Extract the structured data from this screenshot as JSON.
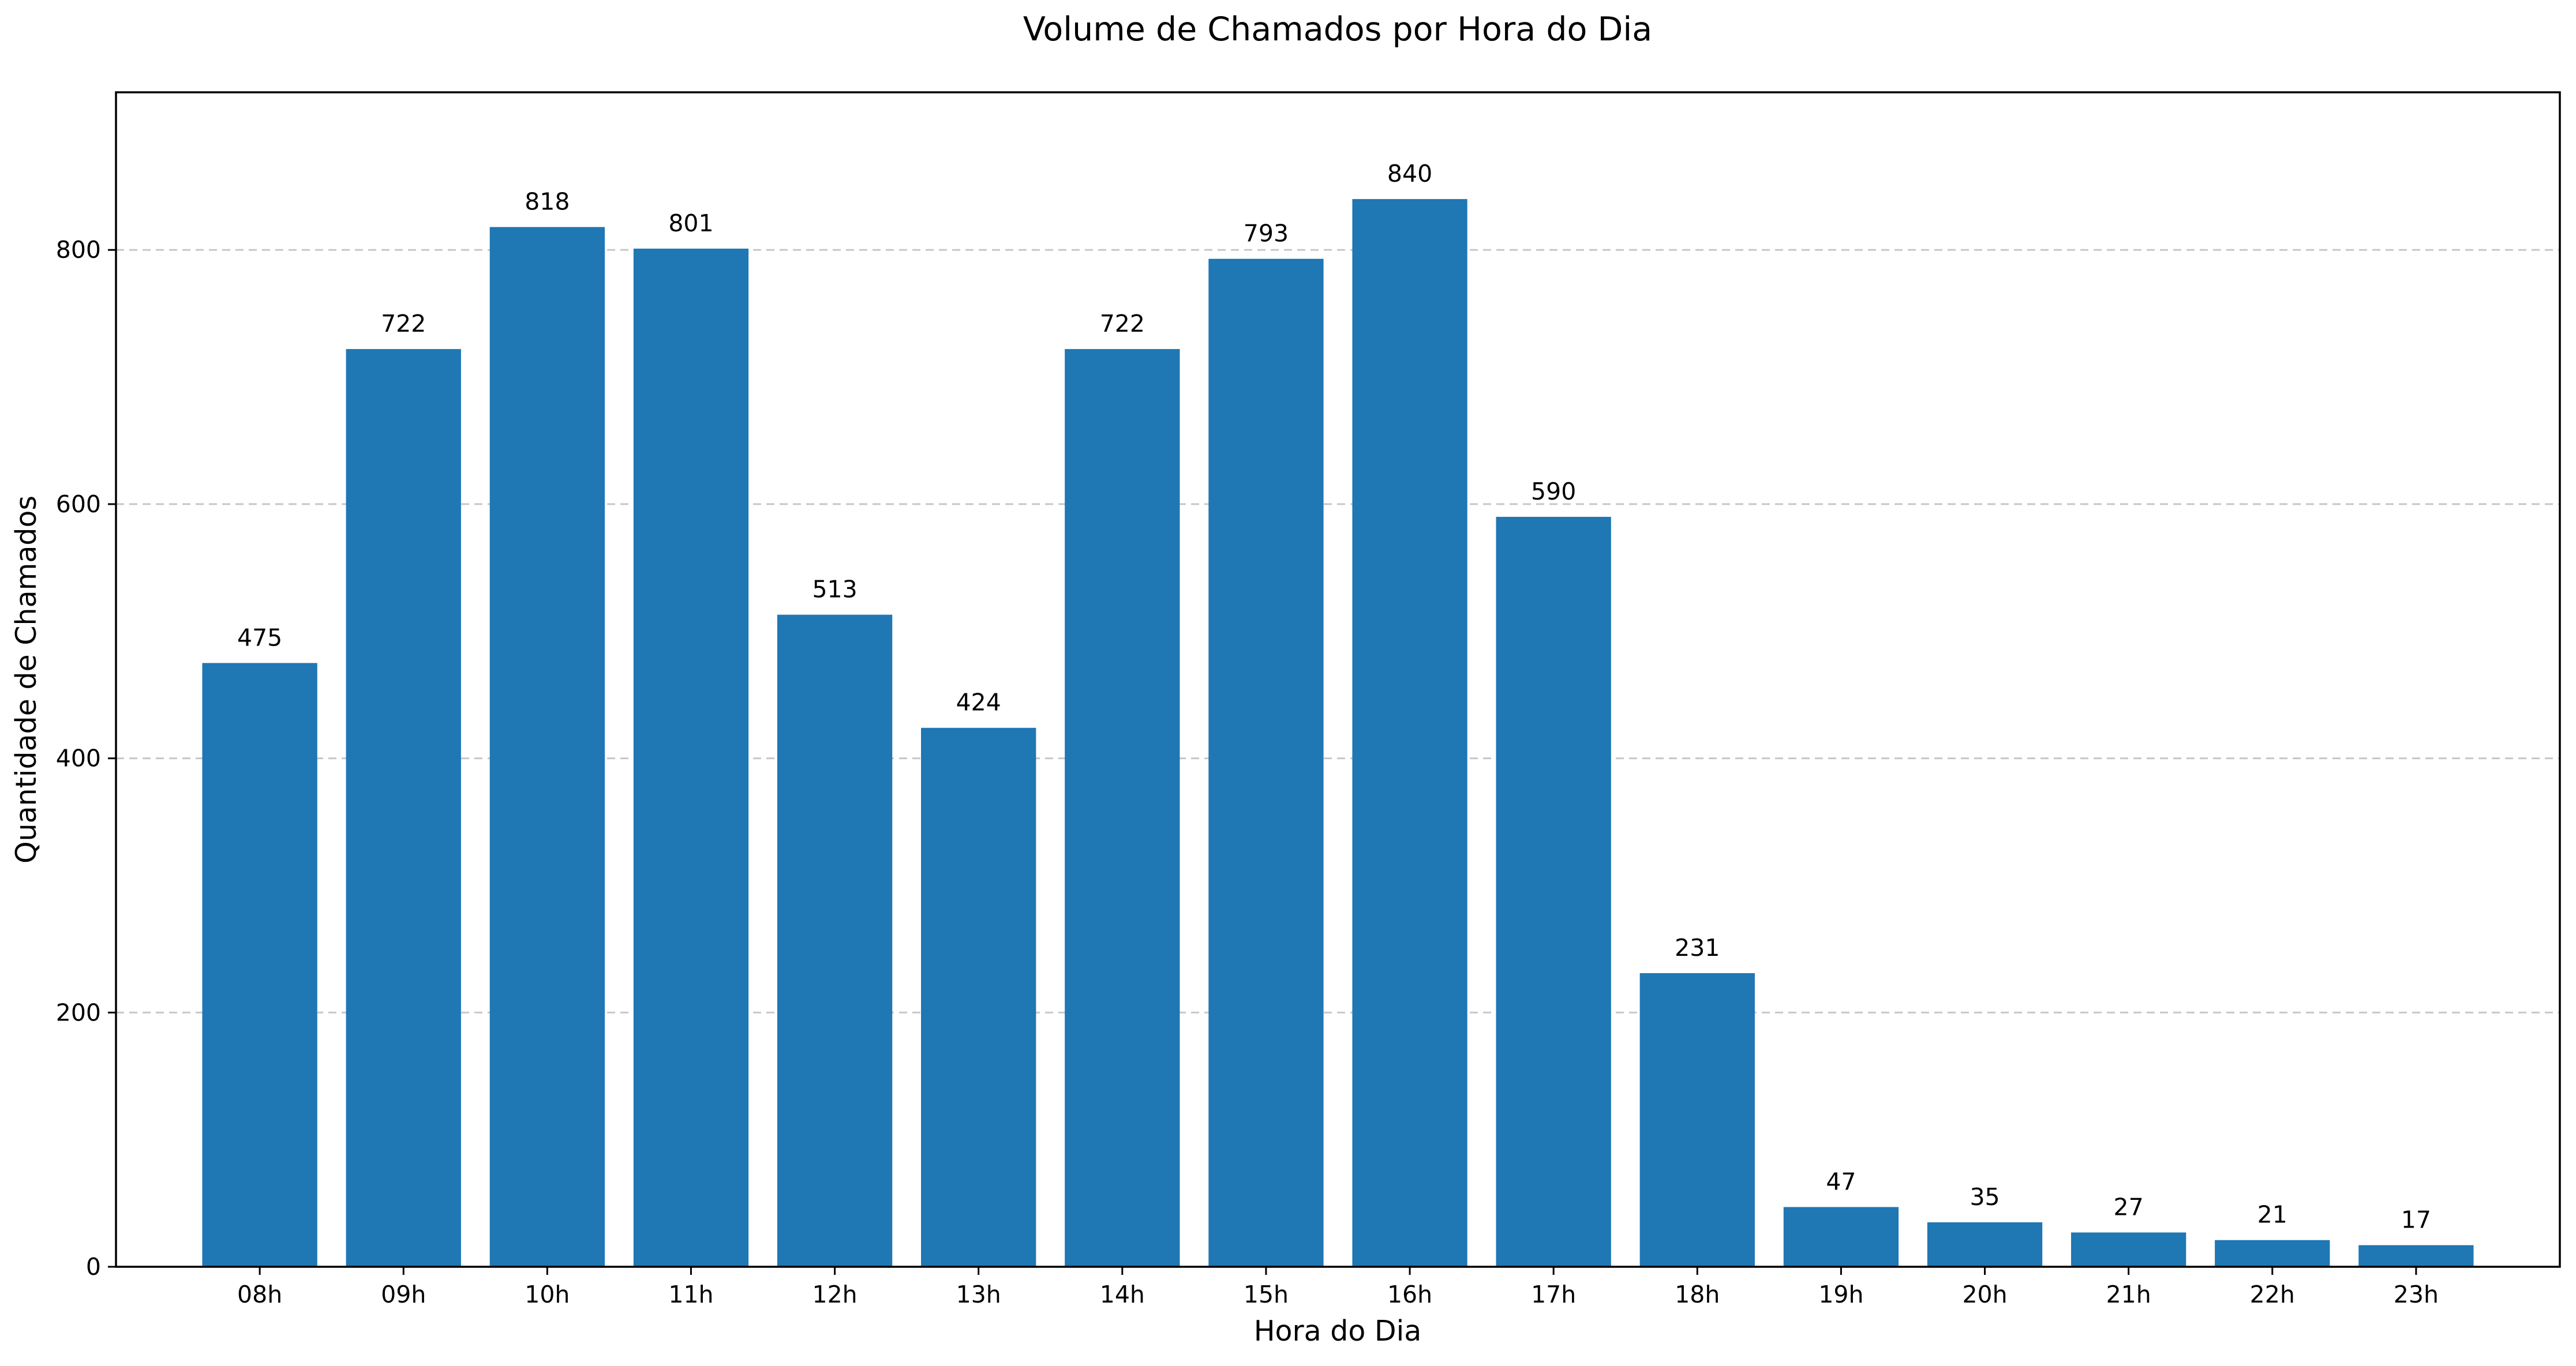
{
  "chart_data": {
    "type": "bar",
    "title": "Volume de Chamados por Hora do Dia",
    "xlabel": "Hora do Dia",
    "ylabel": "Quantidade de Chamados",
    "categories": [
      "08h",
      "09h",
      "10h",
      "11h",
      "12h",
      "13h",
      "14h",
      "15h",
      "16h",
      "17h",
      "18h",
      "19h",
      "20h",
      "21h",
      "22h",
      "23h"
    ],
    "values": [
      475,
      722,
      818,
      801,
      513,
      424,
      722,
      793,
      840,
      590,
      231,
      47,
      35,
      27,
      21,
      17
    ],
    "data_labels": [
      "475",
      "722",
      "818",
      "801",
      "513",
      "424",
      "722",
      "793",
      "840",
      "590",
      "231",
      "47",
      "35",
      "27",
      "21",
      "17"
    ],
    "ylim": [
      0,
      924
    ],
    "yticks": [
      0,
      200,
      400,
      600,
      800
    ],
    "ytick_labels": [
      "0",
      "200",
      "400",
      "600",
      "800"
    ],
    "grid": "y-dashed",
    "bar_color": "#1f77b4"
  }
}
